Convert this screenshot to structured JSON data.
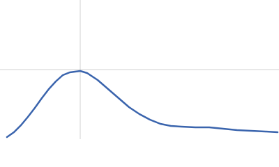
{
  "chart_data": {
    "type": "line",
    "x": [
      0.2,
      0.4,
      0.6,
      0.8,
      1.0,
      1.2,
      1.4,
      1.6,
      1.8,
      2.0,
      2.3,
      2.5,
      2.8,
      3.1,
      3.4,
      3.7,
      4.0,
      4.3,
      4.6,
      4.9,
      5.2,
      5.6,
      6.0,
      6.4,
      6.8,
      7.2,
      7.6,
      7.96
    ],
    "values": [
      0.03,
      0.1,
      0.2,
      0.32,
      0.45,
      0.59,
      0.72,
      0.83,
      0.92,
      0.96,
      0.98,
      0.95,
      0.85,
      0.72,
      0.59,
      0.46,
      0.36,
      0.28,
      0.22,
      0.19,
      0.18,
      0.17,
      0.17,
      0.15,
      0.13,
      0.12,
      0.11,
      0.1
    ],
    "color": "#3a64ad",
    "xlim": [
      0,
      8
    ],
    "ylim": [
      0,
      2
    ],
    "xticks": [
      2.3
    ],
    "yticks": [
      1
    ],
    "grid": true
  }
}
